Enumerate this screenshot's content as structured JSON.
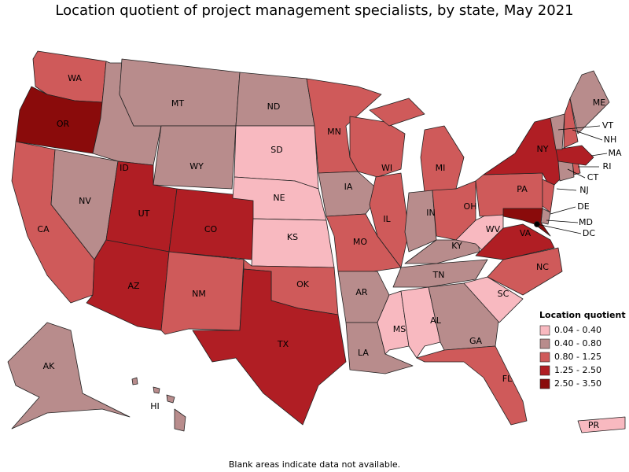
{
  "title": "Location quotient of project management specialists, by state, May 2021",
  "legend": {
    "title": "Location quotient",
    "bins": [
      {
        "label": "0.04 - 0.40",
        "color": "#f8b9c0"
      },
      {
        "label": "0.40 - 0.80",
        "color": "#b88c8c"
      },
      {
        "label": "0.80 - 1.25",
        "color": "#cf5a5a"
      },
      {
        "label": "1.25 - 2.50",
        "color": "#b01e24"
      },
      {
        "label": "2.50 - 3.50",
        "color": "#8a0b0b"
      }
    ]
  },
  "states": [
    {
      "abbr": "WA",
      "color": "#cf5a5a"
    },
    {
      "abbr": "OR",
      "color": "#8a0b0b"
    },
    {
      "abbr": "CA",
      "color": "#cf5a5a"
    },
    {
      "abbr": "NV",
      "color": "#b88c8c"
    },
    {
      "abbr": "ID",
      "color": "#b88c8c"
    },
    {
      "abbr": "MT",
      "color": "#b88c8c"
    },
    {
      "abbr": "WY",
      "color": "#b88c8c"
    },
    {
      "abbr": "UT",
      "color": "#b01e24"
    },
    {
      "abbr": "CO",
      "color": "#b01e24"
    },
    {
      "abbr": "AZ",
      "color": "#b01e24"
    },
    {
      "abbr": "NM",
      "color": "#cf5a5a"
    },
    {
      "abbr": "ND",
      "color": "#b88c8c"
    },
    {
      "abbr": "SD",
      "color": "#f8b9c0"
    },
    {
      "abbr": "NE",
      "color": "#f8b9c0"
    },
    {
      "abbr": "KS",
      "color": "#f8b9c0"
    },
    {
      "abbr": "OK",
      "color": "#cf5a5a"
    },
    {
      "abbr": "TX",
      "color": "#b01e24"
    },
    {
      "abbr": "MN",
      "color": "#cf5a5a"
    },
    {
      "abbr": "IA",
      "color": "#b88c8c"
    },
    {
      "abbr": "MO",
      "color": "#cf5a5a"
    },
    {
      "abbr": "AR",
      "color": "#b88c8c"
    },
    {
      "abbr": "LA",
      "color": "#b88c8c"
    },
    {
      "abbr": "WI",
      "color": "#cf5a5a"
    },
    {
      "abbr": "IL",
      "color": "#cf5a5a"
    },
    {
      "abbr": "MI",
      "color": "#cf5a5a"
    },
    {
      "abbr": "IN",
      "color": "#b88c8c"
    },
    {
      "abbr": "OH",
      "color": "#cf5a5a"
    },
    {
      "abbr": "KY",
      "color": "#b88c8c"
    },
    {
      "abbr": "TN",
      "color": "#b88c8c"
    },
    {
      "abbr": "MS",
      "color": "#f8b9c0"
    },
    {
      "abbr": "AL",
      "color": "#f8b9c0"
    },
    {
      "abbr": "GA",
      "color": "#b88c8c"
    },
    {
      "abbr": "FL",
      "color": "#cf5a5a"
    },
    {
      "abbr": "SC",
      "color": "#f8b9c0"
    },
    {
      "abbr": "NC",
      "color": "#cf5a5a"
    },
    {
      "abbr": "WV",
      "color": "#f8b9c0"
    },
    {
      "abbr": "VA",
      "color": "#b01e24"
    },
    {
      "abbr": "PA",
      "color": "#cf5a5a"
    },
    {
      "abbr": "NY",
      "color": "#b01e24"
    },
    {
      "abbr": "NJ",
      "color": "#cf5a5a"
    },
    {
      "abbr": "DE",
      "color": "#b88c8c"
    },
    {
      "abbr": "MD",
      "color": "#8a0b0b"
    },
    {
      "abbr": "DC",
      "color": "#000000"
    },
    {
      "abbr": "CT",
      "color": "#b88c8c"
    },
    {
      "abbr": "RI",
      "color": "#cf5a5a"
    },
    {
      "abbr": "MA",
      "color": "#b01e24"
    },
    {
      "abbr": "NH",
      "color": "#cf5a5a"
    },
    {
      "abbr": "VT",
      "color": "#b88c8c"
    },
    {
      "abbr": "ME",
      "color": "#b88c8c"
    },
    {
      "abbr": "AK",
      "color": "#b88c8c"
    },
    {
      "abbr": "HI",
      "color": "#b88c8c"
    },
    {
      "abbr": "PR",
      "color": "#f8b9c0"
    }
  ],
  "note": "Blank areas indicate data not available."
}
